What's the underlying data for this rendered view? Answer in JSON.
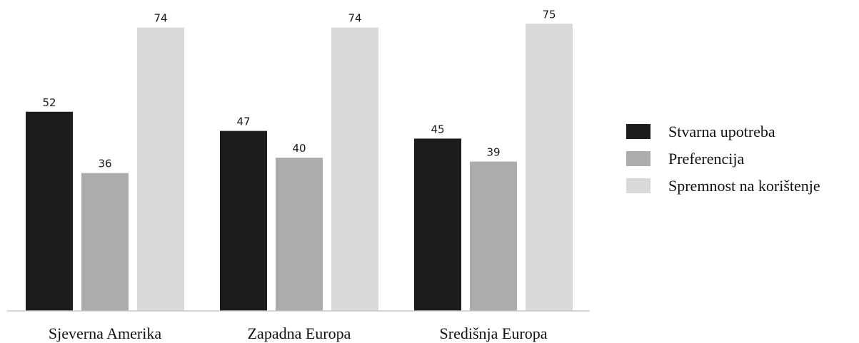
{
  "chart_data": {
    "type": "bar",
    "title": "",
    "xlabel": "",
    "ylabel": "",
    "ylim": [
      0,
      80
    ],
    "grid": false,
    "legend_position": "right",
    "categories": [
      "Sjeverna Amerika",
      "Zapadna Europa",
      "Središnja Europa"
    ],
    "series": [
      {
        "name": "Stvarna upotreba",
        "color": "#1c1c1c",
        "values": [
          52,
          47,
          45
        ]
      },
      {
        "name": "Preferencija",
        "color": "#acacac",
        "values": [
          36,
          40,
          39
        ]
      },
      {
        "name": "Spremnost na korištenje",
        "color": "#d9d9d9",
        "values": [
          74,
          74,
          75
        ]
      }
    ]
  }
}
